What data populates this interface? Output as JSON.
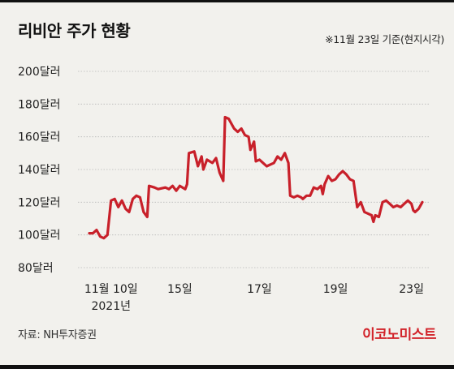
{
  "header": {
    "title": "리비안 주가 현황",
    "date_note": "※11월 23일 기준(현지시각)"
  },
  "footer": {
    "source": "자료: NH투자증권",
    "brand": "이코노미스트"
  },
  "colors": {
    "line": "#c8202a",
    "grid": "#b8b8b8",
    "background": "#f2f1ed",
    "brand": "#d2232a"
  },
  "chart_data": {
    "type": "line",
    "title": "리비안 주가 현황",
    "ylim": [
      80,
      200
    ],
    "y_ticks": [
      {
        "value": 200,
        "label": "200달러"
      },
      {
        "value": 180,
        "label": "180달러"
      },
      {
        "value": 160,
        "label": "160달러"
      },
      {
        "value": 140,
        "label": "140달러"
      },
      {
        "value": 120,
        "label": "120달러"
      },
      {
        "value": 100,
        "label": "100달러"
      },
      {
        "value": 80,
        "label": "80달러"
      }
    ],
    "x_ticks": [
      {
        "label": "11월 10일",
        "label2": "2021년",
        "t": 0.06
      },
      {
        "label": "15일",
        "t": 0.25
      },
      {
        "label": "17일",
        "t": 0.47
      },
      {
        "label": "19일",
        "t": 0.68
      },
      {
        "label": "23일",
        "t": 0.89
      }
    ],
    "grid": true,
    "series": [
      {
        "color": "#c8202a",
        "points": [
          [
            0.0,
            101
          ],
          [
            0.01,
            101
          ],
          [
            0.02,
            103
          ],
          [
            0.03,
            99
          ],
          [
            0.04,
            98
          ],
          [
            0.05,
            100
          ],
          [
            0.06,
            121
          ],
          [
            0.07,
            122
          ],
          [
            0.08,
            117
          ],
          [
            0.09,
            121
          ],
          [
            0.1,
            116
          ],
          [
            0.11,
            114
          ],
          [
            0.12,
            122
          ],
          [
            0.13,
            124
          ],
          [
            0.14,
            123
          ],
          [
            0.15,
            114
          ],
          [
            0.16,
            111
          ],
          [
            0.165,
            130
          ],
          [
            0.18,
            129
          ],
          [
            0.19,
            128
          ],
          [
            0.21,
            129
          ],
          [
            0.22,
            128
          ],
          [
            0.23,
            130
          ],
          [
            0.24,
            127
          ],
          [
            0.25,
            130
          ],
          [
            0.265,
            128
          ],
          [
            0.27,
            131
          ],
          [
            0.275,
            150
          ],
          [
            0.29,
            151
          ],
          [
            0.3,
            142
          ],
          [
            0.31,
            148
          ],
          [
            0.315,
            140
          ],
          [
            0.325,
            146
          ],
          [
            0.34,
            144
          ],
          [
            0.35,
            147
          ],
          [
            0.36,
            138
          ],
          [
            0.37,
            133
          ],
          [
            0.375,
            172
          ],
          [
            0.385,
            171
          ],
          [
            0.4,
            165
          ],
          [
            0.41,
            163
          ],
          [
            0.42,
            165
          ],
          [
            0.43,
            161
          ],
          [
            0.44,
            160
          ],
          [
            0.445,
            152
          ],
          [
            0.455,
            157
          ],
          [
            0.46,
            145
          ],
          [
            0.47,
            146
          ],
          [
            0.48,
            144
          ],
          [
            0.49,
            142
          ],
          [
            0.5,
            143
          ],
          [
            0.51,
            144
          ],
          [
            0.52,
            148
          ],
          [
            0.53,
            146
          ],
          [
            0.54,
            150
          ],
          [
            0.55,
            144
          ],
          [
            0.555,
            124
          ],
          [
            0.565,
            123
          ],
          [
            0.575,
            124
          ],
          [
            0.585,
            123
          ],
          [
            0.59,
            122
          ],
          [
            0.6,
            124
          ],
          [
            0.61,
            124
          ],
          [
            0.62,
            129
          ],
          [
            0.63,
            128
          ],
          [
            0.64,
            130
          ],
          [
            0.645,
            125
          ],
          [
            0.65,
            131
          ],
          [
            0.66,
            136
          ],
          [
            0.67,
            133
          ],
          [
            0.68,
            134
          ],
          [
            0.69,
            137
          ],
          [
            0.7,
            139
          ],
          [
            0.71,
            137
          ],
          [
            0.72,
            134
          ],
          [
            0.73,
            133
          ],
          [
            0.74,
            117
          ],
          [
            0.75,
            120
          ],
          [
            0.76,
            114
          ],
          [
            0.77,
            113
          ],
          [
            0.78,
            112
          ],
          [
            0.785,
            108
          ],
          [
            0.79,
            112
          ],
          [
            0.8,
            111
          ],
          [
            0.81,
            120
          ],
          [
            0.82,
            121
          ],
          [
            0.83,
            119
          ],
          [
            0.84,
            117
          ],
          [
            0.85,
            118
          ],
          [
            0.86,
            117
          ],
          [
            0.87,
            119
          ],
          [
            0.875,
            120
          ],
          [
            0.88,
            121
          ],
          [
            0.89,
            119
          ],
          [
            0.895,
            115
          ],
          [
            0.9,
            114
          ],
          [
            0.91,
            116
          ],
          [
            0.92,
            120
          ]
        ]
      }
    ]
  }
}
